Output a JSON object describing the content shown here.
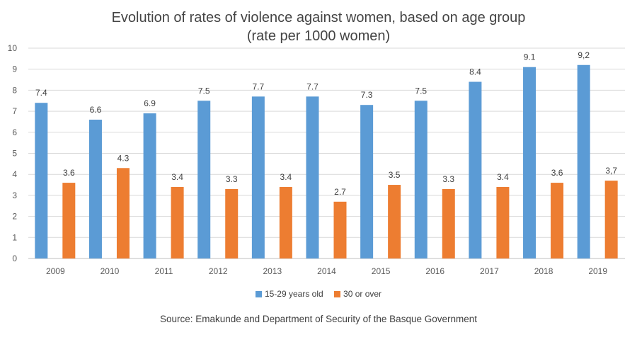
{
  "chart_data": {
    "type": "bar",
    "title": "Evolution of rates of violence against women, based on age group",
    "subtitle": "(rate per 1000 women)",
    "categories": [
      "2009",
      "2010",
      "2011",
      "2012",
      "2013",
      "2014",
      "2015",
      "2016",
      "2017",
      "2018",
      "2019"
    ],
    "series": [
      {
        "name": "15-29 years old",
        "color": "#5B9BD5",
        "values": [
          7.4,
          6.6,
          6.9,
          7.5,
          7.7,
          7.7,
          7.3,
          7.5,
          8.4,
          9.1,
          9.2
        ],
        "labels": [
          "7.4",
          "6.6",
          "6.9",
          "7.5",
          "7.7",
          "7.7",
          "7.3",
          "7.5",
          "8.4",
          "9.1",
          "9,2"
        ]
      },
      {
        "name": "30 or over",
        "color": "#ED7D31",
        "values": [
          3.6,
          4.3,
          3.4,
          3.3,
          3.4,
          2.7,
          3.5,
          3.3,
          3.4,
          3.6,
          3.7
        ],
        "labels": [
          "3.6",
          "4.3",
          "3.4",
          "3.3",
          "3.4",
          "2.7",
          "3.5",
          "3.3",
          "3.4",
          "3.6",
          "3,7"
        ]
      }
    ],
    "ylim": [
      0,
      10
    ],
    "yticks": [
      "0",
      "1",
      "2",
      "3",
      "4",
      "5",
      "6",
      "7",
      "8",
      "9",
      "10"
    ],
    "grid": true,
    "legend_position": "bottom",
    "xlabel": "",
    "ylabel": "",
    "source": "Source: Emakunde and Department of Security of the Basque Government"
  }
}
